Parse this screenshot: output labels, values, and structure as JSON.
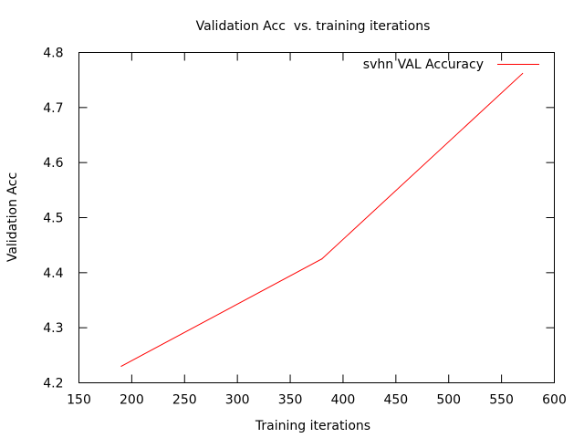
{
  "chart_data": {
    "type": "line",
    "title": "Validation Acc  vs. training iterations",
    "xlabel": "Training iterations",
    "ylabel": "Validation Acc",
    "xlim": [
      150,
      600
    ],
    "ylim": [
      4.2,
      4.8
    ],
    "xticks": [
      "150",
      "200",
      "250",
      "300",
      "350",
      "400",
      "450",
      "500",
      "550",
      "600"
    ],
    "yticks": [
      "4.2",
      "4.3",
      "4.4",
      "4.5",
      "4.6",
      "4.7",
      "4.8"
    ],
    "grid": false,
    "legend_position": "top-right",
    "series": [
      {
        "name": "svhn VAL Accuracy",
        "color": "#ff0000",
        "x": [
          190,
          380,
          570
        ],
        "y": [
          4.23,
          4.425,
          4.762
        ]
      }
    ]
  }
}
